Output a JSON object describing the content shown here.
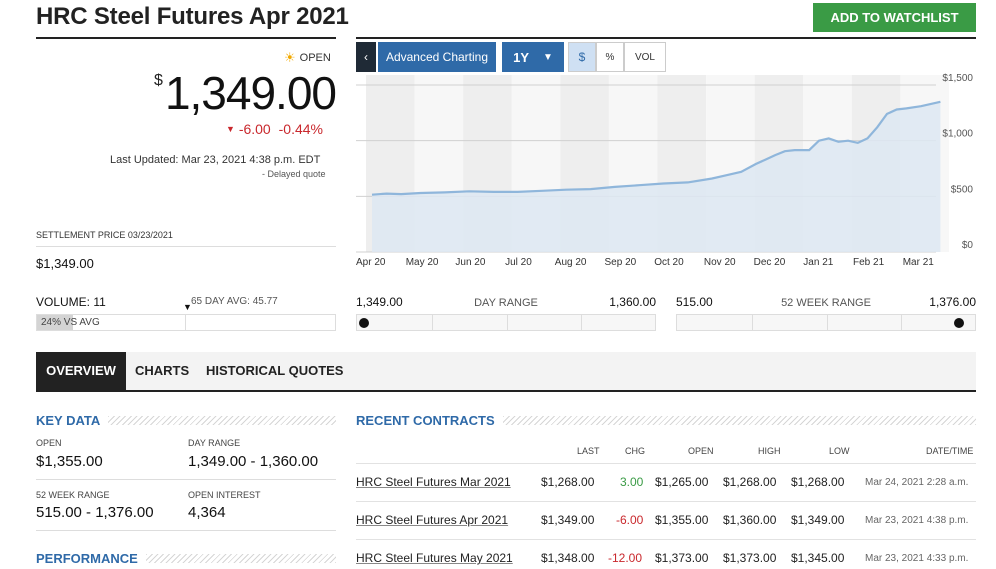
{
  "header": {
    "title": "HRC Steel Futures Apr 2021",
    "watchlist_label": "ADD TO WATCHLIST"
  },
  "quote": {
    "status": "OPEN",
    "currency": "$",
    "price": "1,349.00",
    "change": "-6.00",
    "change_pct": "-0.44%",
    "last_updated": "Last Updated: Mar 23, 2021 4:38 p.m. EDT",
    "delayed": "- Delayed quote",
    "settlement_label": "SETTLEMENT PRICE 03/23/2021",
    "settlement_value": "$1,349.00"
  },
  "chart_controls": {
    "advanced": "Advanced Charting",
    "range": "1Y",
    "dollar": "$",
    "percent": "%",
    "vol": "VOL"
  },
  "volume": {
    "label": "VOLUME: 11",
    "avg_label": "65 DAY AVG: 45.77",
    "vs_avg_text": "24% VS AVG",
    "vs_avg_fraction": 0.24
  },
  "day_range": {
    "low": "1,349.00",
    "title": "DAY RANGE",
    "high": "1,360.00",
    "position": 0.0
  },
  "week52_range": {
    "low": "515.00",
    "title": "52 WEEK RANGE",
    "high": "1,376.00",
    "position": 0.97
  },
  "tabs": [
    {
      "label": "OVERVIEW",
      "active": true
    },
    {
      "label": "CHARTS",
      "active": false
    },
    {
      "label": "HISTORICAL QUOTES",
      "active": false
    }
  ],
  "key_data": {
    "heading": "KEY DATA",
    "open_label": "OPEN",
    "open_value": "$1,355.00",
    "day_range_label": "DAY RANGE",
    "day_range_value": "1,349.00 - 1,360.00",
    "week52_label": "52 WEEK RANGE",
    "week52_value": "515.00 - 1,376.00",
    "oi_label": "OPEN INTEREST",
    "oi_value": "4,364"
  },
  "performance": {
    "heading": "PERFORMANCE"
  },
  "recent_contracts": {
    "heading": "RECENT CONTRACTS",
    "columns": [
      "LAST",
      "CHG",
      "OPEN",
      "HIGH",
      "LOW",
      "DATE/TIME"
    ],
    "rows": [
      {
        "name": "HRC Steel Futures Mar 2021",
        "last": "$1,268.00",
        "chg": "3.00",
        "dir": "up",
        "open": "$1,265.00",
        "high": "$1,268.00",
        "low": "$1,268.00",
        "date": "Mar 24, 2021 2:28 a.m."
      },
      {
        "name": "HRC Steel Futures Apr 2021",
        "last": "$1,349.00",
        "chg": "-6.00",
        "dir": "down",
        "open": "$1,355.00",
        "high": "$1,360.00",
        "low": "$1,349.00",
        "date": "Mar 23, 2021 4:38 p.m."
      },
      {
        "name": "HRC Steel Futures May 2021",
        "last": "$1,348.00",
        "chg": "-12.00",
        "dir": "down",
        "open": "$1,373.00",
        "high": "$1,373.00",
        "low": "$1,345.00",
        "date": "Mar 23, 2021 4:33 p.m."
      }
    ]
  },
  "colors": {
    "accent": "#2f6aa8",
    "positive": "#3a9b45",
    "negative": "#c9282d",
    "line": "#8fb6db",
    "area": "#dde8f2"
  },
  "chart_data": {
    "type": "area",
    "x_ticks": [
      "Apr 20",
      "May 20",
      "Jun 20",
      "Jul 20",
      "Aug 20",
      "Sep 20",
      "Oct 20",
      "Nov 20",
      "Dec 20",
      "Jan 21",
      "Feb 21",
      "Mar 21"
    ],
    "y_ticks": [
      "$1,500",
      "$1,000",
      "$500",
      "$0"
    ],
    "ylim": [
      0,
      1500
    ],
    "grid": true,
    "series": [
      {
        "x": [
          0,
          0.3,
          0.6,
          1,
          1.5,
          2,
          2.5,
          3,
          3.5,
          4,
          4.5,
          5,
          5.5,
          6,
          6.5,
          7,
          7.3,
          7.6,
          7.9,
          8.1,
          8.3,
          8.5,
          8.7,
          9,
          9.2,
          9.4,
          9.6,
          9.8,
          10,
          10.2,
          10.4,
          10.6,
          10.8,
          11,
          11.3,
          11.7
        ],
        "y": [
          515,
          525,
          520,
          530,
          535,
          545,
          540,
          540,
          550,
          560,
          565,
          585,
          600,
          615,
          625,
          660,
          690,
          720,
          790,
          830,
          870,
          905,
          915,
          915,
          1000,
          1020,
          990,
          1000,
          980,
          1020,
          1120,
          1240,
          1280,
          1290,
          1310,
          1349
        ]
      }
    ]
  }
}
